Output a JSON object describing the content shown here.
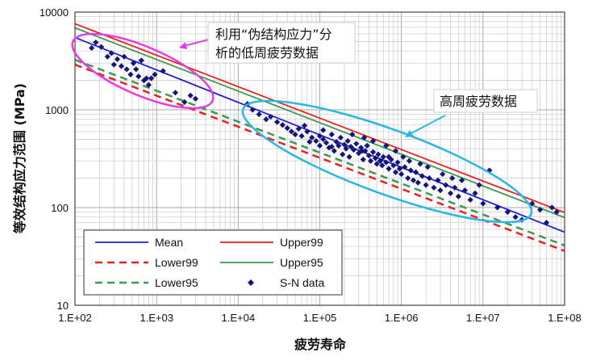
{
  "chart_data": {
    "type": "scatter",
    "title": "",
    "xlabel": "疲劳寿命",
    "ylabel": "等效结构应力范围 (MPa)",
    "x_scale": "log",
    "y_scale": "log",
    "xlim": [
      100,
      100000000
    ],
    "ylim": [
      10,
      10000
    ],
    "grid": true,
    "x_ticks": [
      "1.E+02",
      "1.E+03",
      "1.E+04",
      "1.E+05",
      "1.E+06",
      "1.E+07",
      "1.E+08"
    ],
    "y_ticks": [
      "10",
      "100",
      "1000",
      "10000"
    ],
    "legend_position": "bottom-left",
    "legend": [
      "Mean",
      "Upper99",
      "Lower99",
      "Upper95",
      "Lower95",
      "S-N data"
    ],
    "lines": [
      {
        "name": "Mean",
        "style": "solid",
        "color": "#1f1fd6",
        "points": [
          [
            100,
            5500
          ],
          [
            100000000,
            56
          ]
        ]
      },
      {
        "name": "Upper99",
        "style": "solid",
        "color": "#e8211f",
        "points": [
          [
            100,
            7600
          ],
          [
            100000000,
            89
          ]
        ]
      },
      {
        "name": "Lower99",
        "style": "dashed",
        "color": "#e8211f",
        "points": [
          [
            100,
            2900
          ],
          [
            100000000,
            36
          ]
        ]
      },
      {
        "name": "Upper95",
        "style": "solid",
        "color": "#3a9a52",
        "points": [
          [
            100,
            6900
          ],
          [
            100000000,
            79
          ]
        ]
      },
      {
        "name": "Lower95",
        "style": "dashed",
        "color": "#3a9a52",
        "points": [
          [
            100,
            3250
          ],
          [
            100000000,
            41
          ]
        ]
      }
    ],
    "scatter": {
      "name": "S-N data",
      "color": "#14147a",
      "points": [
        [
          160,
          4300
        ],
        [
          180,
          4900
        ],
        [
          210,
          4400
        ],
        [
          250,
          3500
        ],
        [
          280,
          3800
        ],
        [
          300,
          2900
        ],
        [
          330,
          3300
        ],
        [
          370,
          2800
        ],
        [
          400,
          3500
        ],
        [
          430,
          2600
        ],
        [
          480,
          2300
        ],
        [
          520,
          3000
        ],
        [
          560,
          2600
        ],
        [
          600,
          2200
        ],
        [
          650,
          3200
        ],
        [
          700,
          2000
        ],
        [
          750,
          2100
        ],
        [
          800,
          1800
        ],
        [
          860,
          2100
        ],
        [
          950,
          2300
        ],
        [
          1200,
          2500
        ],
        [
          1700,
          1500
        ],
        [
          2200,
          1200
        ],
        [
          2600,
          1400
        ],
        [
          3000,
          1300
        ],
        [
          13000,
          1150
        ],
        [
          15000,
          1000
        ],
        [
          18000,
          900
        ],
        [
          22000,
          800
        ],
        [
          25000,
          850
        ],
        [
          30000,
          750
        ],
        [
          35000,
          700
        ],
        [
          40000,
          650
        ],
        [
          45000,
          600
        ],
        [
          50000,
          560
        ],
        [
          55000,
          640
        ],
        [
          60000,
          540
        ],
        [
          70000,
          600
        ],
        [
          75000,
          470
        ],
        [
          80000,
          520
        ],
        [
          90000,
          480
        ],
        [
          100000,
          540
        ],
        [
          100000,
          430
        ],
        [
          110000,
          500
        ],
        [
          120000,
          460
        ],
        [
          130000,
          410
        ],
        [
          140000,
          560
        ],
        [
          150000,
          380
        ],
        [
          160000,
          470
        ],
        [
          170000,
          430
        ],
        [
          180000,
          520
        ],
        [
          190000,
          350
        ],
        [
          200000,
          440
        ],
        [
          210000,
          400
        ],
        [
          220000,
          480
        ],
        [
          230000,
          330
        ],
        [
          240000,
          420
        ],
        [
          260000,
          390
        ],
        [
          280000,
          450
        ],
        [
          300000,
          360
        ],
        [
          320000,
          410
        ],
        [
          340000,
          310
        ],
        [
          360000,
          380
        ],
        [
          380000,
          430
        ],
        [
          400000,
          340
        ],
        [
          420000,
          300
        ],
        [
          450000,
          370
        ],
        [
          480000,
          320
        ],
        [
          500000,
          280
        ],
        [
          520000,
          350
        ],
        [
          550000,
          300
        ],
        [
          580000,
          270
        ],
        [
          600000,
          330
        ],
        [
          650000,
          290
        ],
        [
          700000,
          250
        ],
        [
          750000,
          310
        ],
        [
          800000,
          270
        ],
        [
          850000,
          230
        ],
        [
          900000,
          290
        ],
        [
          950000,
          250
        ],
        [
          1000000,
          220
        ],
        [
          1100000,
          260
        ],
        [
          1200000,
          200
        ],
        [
          1300000,
          240
        ],
        [
          1400000,
          190
        ],
        [
          1500000,
          230
        ],
        [
          1600000,
          180
        ],
        [
          1800000,
          210
        ],
        [
          2000000,
          170
        ],
        [
          2200000,
          200
        ],
        [
          2500000,
          160
        ],
        [
          2800000,
          190
        ],
        [
          3000000,
          150
        ],
        [
          3500000,
          170
        ],
        [
          4000000,
          140
        ],
        [
          4500000,
          160
        ],
        [
          5000000,
          130
        ],
        [
          6000000,
          150
        ],
        [
          7000000,
          120
        ],
        [
          8000000,
          140
        ],
        [
          10000000,
          110
        ],
        [
          12000000,
          240
        ],
        [
          15000000,
          100
        ],
        [
          20000000,
          90
        ],
        [
          25000000,
          80
        ],
        [
          30000000,
          75
        ],
        [
          40000000,
          110
        ],
        [
          50000000,
          95
        ],
        [
          60000000,
          70
        ],
        [
          70000000,
          100
        ],
        [
          80000000,
          90
        ],
        [
          250000,
          560
        ],
        [
          350000,
          520
        ],
        [
          450000,
          480
        ],
        [
          650000,
          430
        ],
        [
          850000,
          380
        ],
        [
          1700000,
          280
        ],
        [
          2100000,
          260
        ],
        [
          3200000,
          220
        ],
        [
          4200000,
          200
        ],
        [
          5500000,
          190
        ],
        [
          9000000,
          170
        ],
        [
          110000,
          620
        ],
        [
          65000,
          690
        ],
        [
          1050000,
          330
        ],
        [
          1250000,
          300
        ],
        [
          140000,
          420
        ],
        [
          330000,
          380
        ],
        [
          700000,
          330
        ]
      ]
    },
    "annotations": [
      {
        "text": "利用“伪结构应力”分析的低周疲劳数据"
      },
      {
        "text": "高周疲劳数据"
      }
    ]
  }
}
